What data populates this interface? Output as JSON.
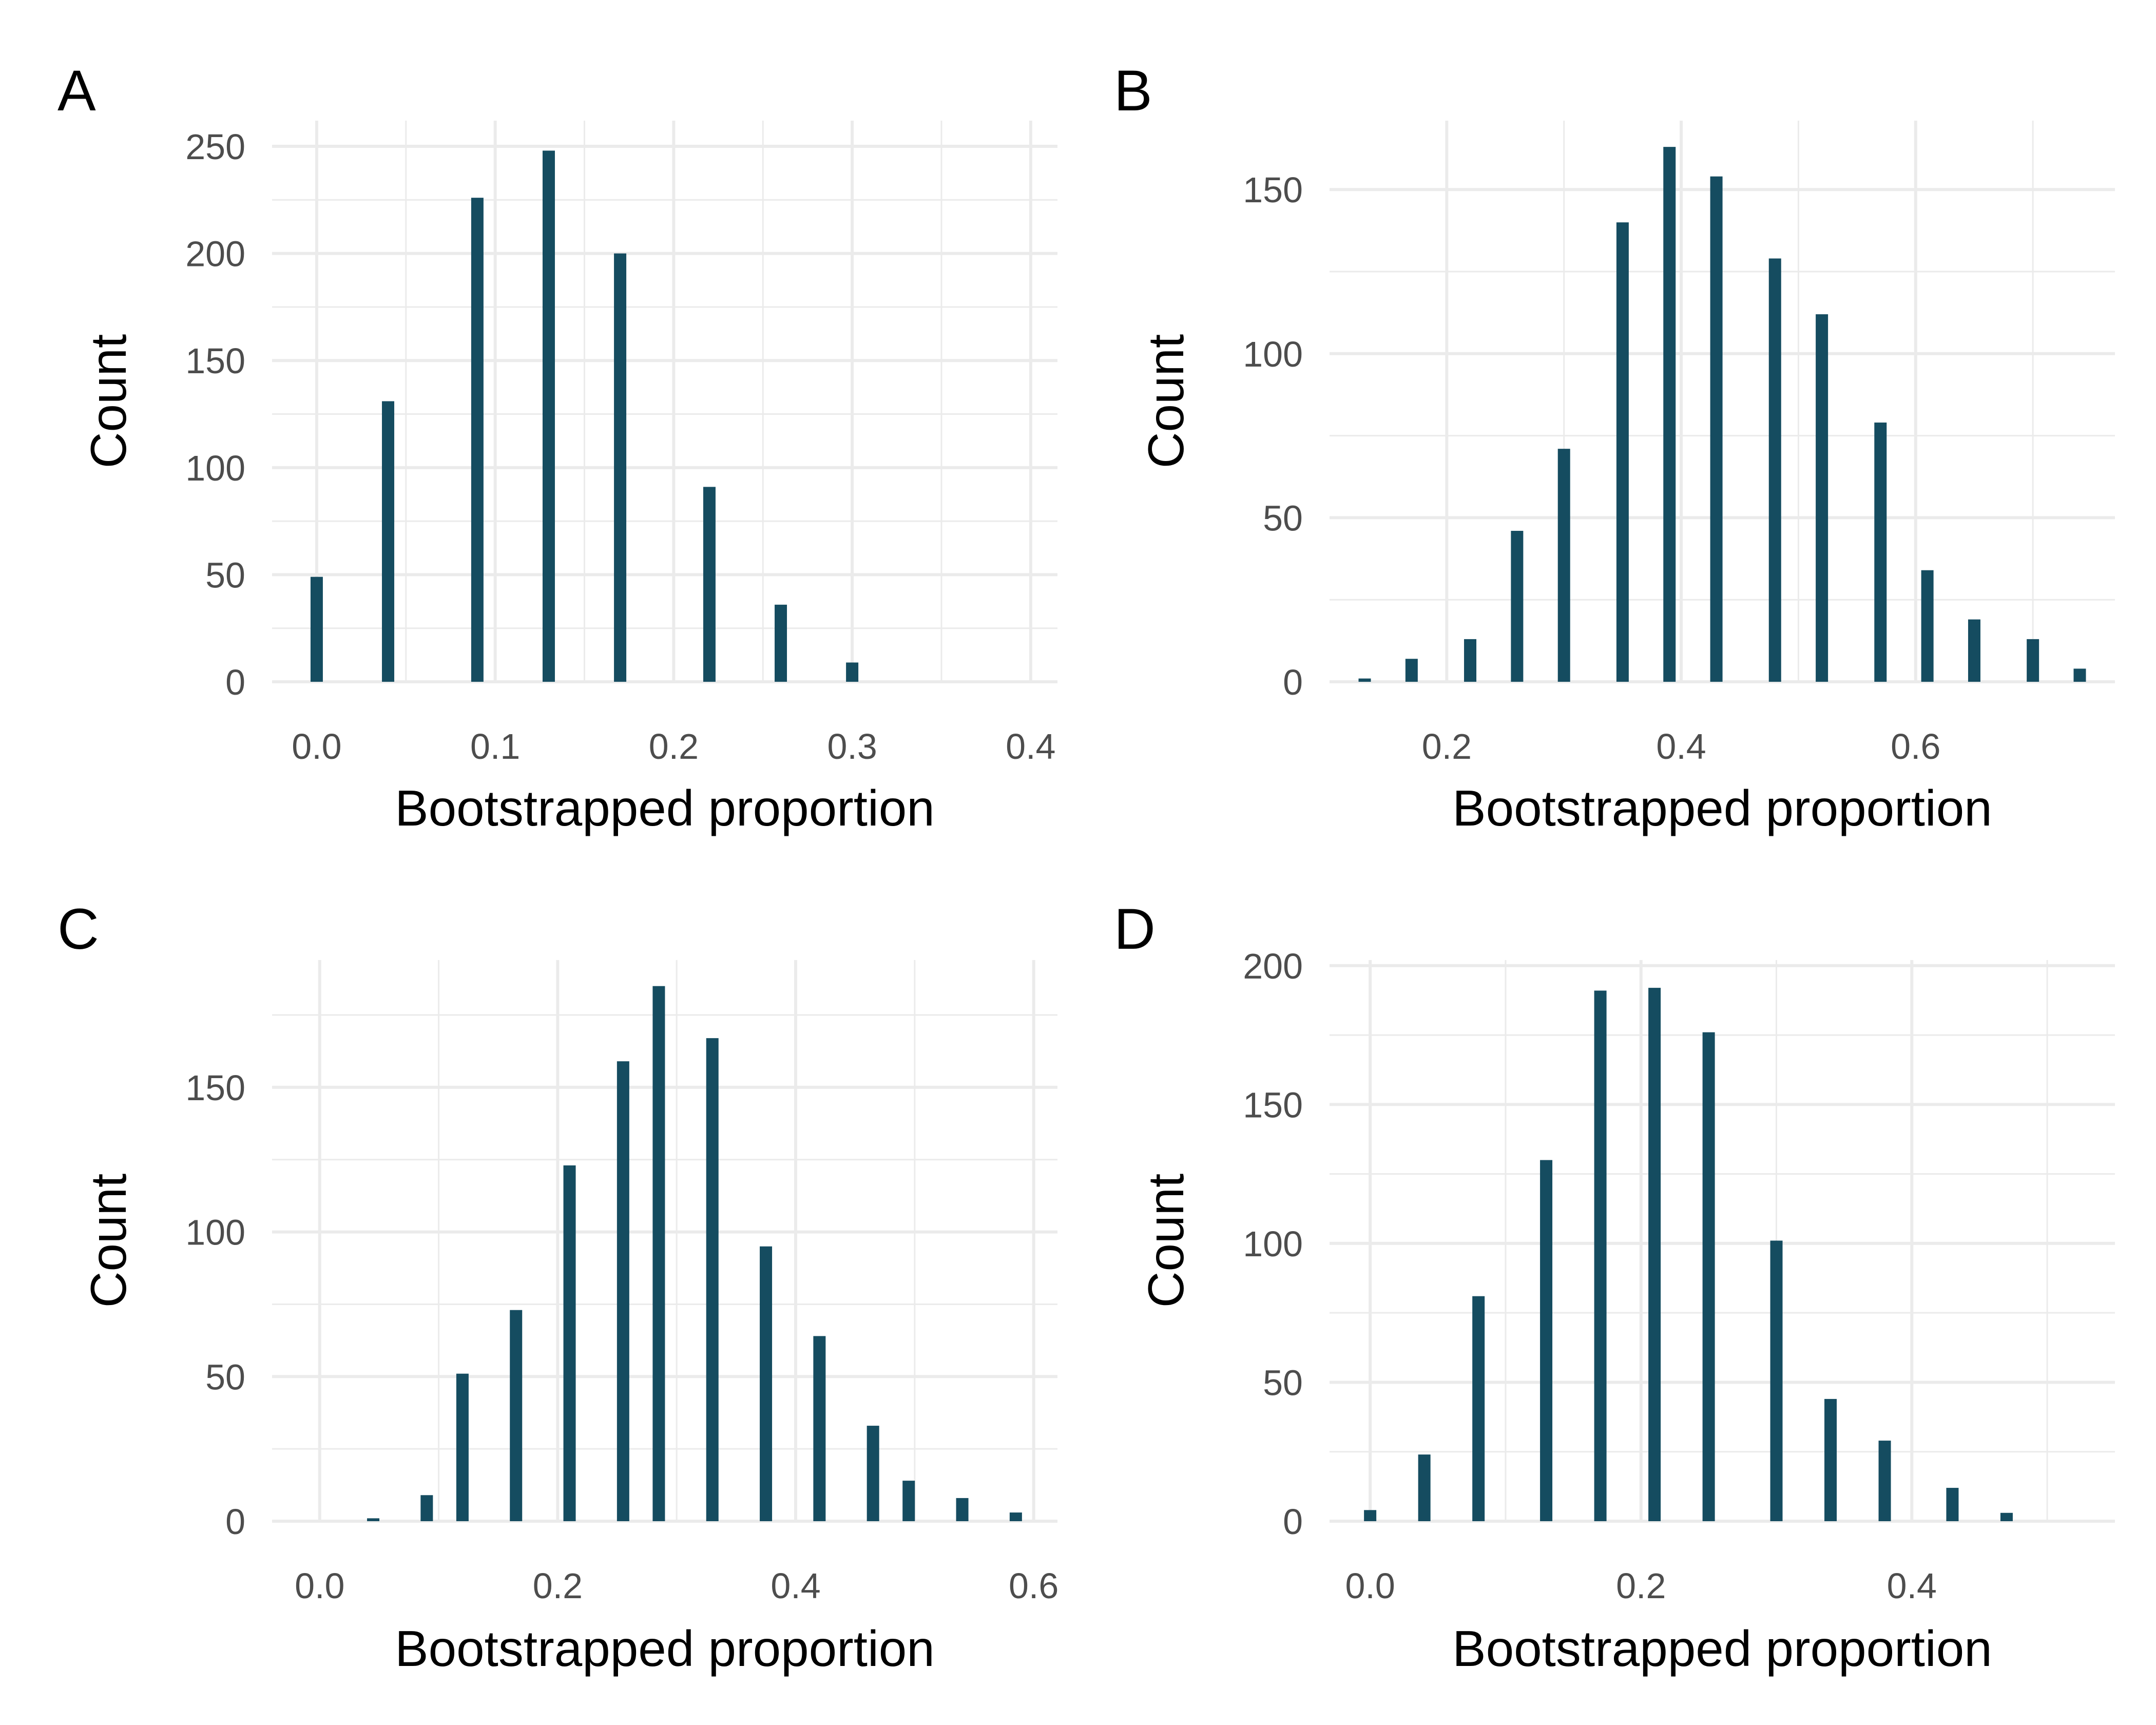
{
  "figure": {
    "bar_color": "#154c60",
    "grid_color": "#ebebeb",
    "background": "#ffffff"
  },
  "chart_data": [
    {
      "panel": "A",
      "type": "bar",
      "title": "",
      "xlabel": "Bootstrapped proportion",
      "ylabel": "Count",
      "xlim": [
        -0.025,
        0.415
      ],
      "ylim": [
        0,
        262
      ],
      "xticks": [
        0.0,
        0.1,
        0.2,
        0.3,
        0.4
      ],
      "xtick_labels": [
        "0.0",
        "0.1",
        "0.2",
        "0.3",
        "0.4"
      ],
      "yticks": [
        0,
        50,
        100,
        150,
        200,
        250
      ],
      "ytick_labels": [
        "0",
        "50",
        "100",
        "150",
        "200",
        "250"
      ],
      "x": [
        0.0,
        0.04,
        0.09,
        0.13,
        0.17,
        0.22,
        0.26,
        0.3,
        0.35,
        0.39
      ],
      "values": [
        49,
        131,
        226,
        248,
        200,
        91,
        36,
        9,
        0,
        0
      ],
      "grid": true
    },
    {
      "panel": "B",
      "type": "bar",
      "title": "",
      "xlabel": "Bootstrapped proportion",
      "ylabel": "Count",
      "xlim": [
        0.1,
        0.77
      ],
      "ylim": [
        0,
        171
      ],
      "xticks": [
        0.2,
        0.4,
        0.6
      ],
      "xtick_labels": [
        "0.2",
        "0.4",
        "0.6"
      ],
      "yticks": [
        0,
        50,
        100,
        150
      ],
      "ytick_labels": [
        "0",
        "50",
        "100",
        "150"
      ],
      "x": [
        0.13,
        0.17,
        0.22,
        0.26,
        0.3,
        0.35,
        0.39,
        0.43,
        0.48,
        0.52,
        0.57,
        0.61,
        0.65,
        0.7,
        0.74
      ],
      "values": [
        1,
        7,
        13,
        46,
        71,
        140,
        163,
        154,
        129,
        112,
        79,
        34,
        19,
        13,
        4
      ],
      "grid": true
    },
    {
      "panel": "C",
      "type": "bar",
      "title": "",
      "xlabel": "Bootstrapped proportion",
      "ylabel": "Count",
      "xlim": [
        -0.04,
        0.62
      ],
      "ylim": [
        0,
        194
      ],
      "xticks": [
        0.0,
        0.2,
        0.4,
        0.6
      ],
      "xtick_labels": [
        "0.0",
        "0.2",
        "0.4",
        "0.6"
      ],
      "yticks": [
        0,
        50,
        100,
        150
      ],
      "ytick_labels": [
        "0",
        "50",
        "100",
        "150"
      ],
      "x": [
        0.0,
        0.045,
        0.09,
        0.12,
        0.165,
        0.21,
        0.255,
        0.285,
        0.33,
        0.375,
        0.42,
        0.465,
        0.495,
        0.54,
        0.585
      ],
      "values": [
        0,
        1,
        9,
        51,
        73,
        123,
        159,
        185,
        167,
        95,
        64,
        33,
        14,
        8,
        3
      ],
      "grid": true
    },
    {
      "panel": "D",
      "type": "bar",
      "title": "",
      "xlabel": "Bootstrapped proportion",
      "ylabel": "Count",
      "xlim": [
        -0.03,
        0.55
      ],
      "ylim": [
        0,
        202
      ],
      "xticks": [
        0.0,
        0.2,
        0.4
      ],
      "xtick_labels": [
        "0.0",
        "0.2",
        "0.4"
      ],
      "yticks": [
        0,
        50,
        100,
        150,
        200
      ],
      "ytick_labels": [
        "0",
        "50",
        "100",
        "150",
        "200"
      ],
      "x": [
        0.0,
        0.04,
        0.08,
        0.13,
        0.17,
        0.21,
        0.25,
        0.3,
        0.34,
        0.38,
        0.43,
        0.47,
        0.51
      ],
      "values": [
        4,
        24,
        81,
        130,
        191,
        192,
        176,
        101,
        44,
        29,
        12,
        3,
        0
      ],
      "grid": true
    }
  ]
}
